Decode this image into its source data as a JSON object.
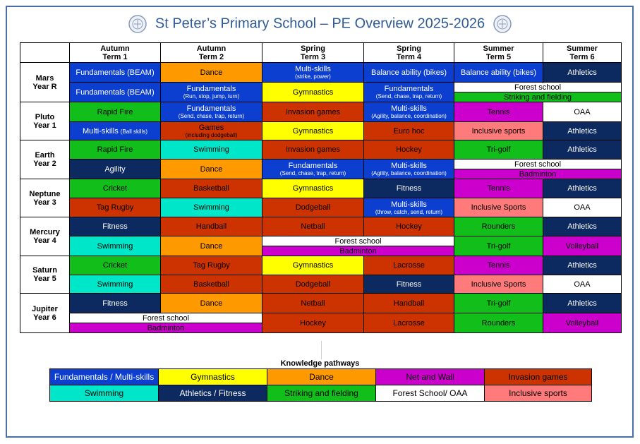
{
  "title": "St Peter’s Primary School – PE Overview 2025-2026",
  "headers": [
    {
      "l1": "Autumn",
      "l2": "Term 1"
    },
    {
      "l1": "Autumn",
      "l2": "Term 2"
    },
    {
      "l1": "Spring",
      "l2": "Term 3"
    },
    {
      "l1": "Spring",
      "l2": "Term 4"
    },
    {
      "l1": "Summer",
      "l2": "Term 5"
    },
    {
      "l1": "Summer",
      "l2": "Term 6"
    }
  ],
  "years": [
    {
      "name": "Mars",
      "year": "Year R"
    },
    {
      "name": "Pluto",
      "year": "Year 1"
    },
    {
      "name": "Earth",
      "year": "Year 2"
    },
    {
      "name": "Neptune",
      "year": "Year 3"
    },
    {
      "name": "Mercury",
      "year": "Year 4"
    },
    {
      "name": "Saturn",
      "year": "Year 5"
    },
    {
      "name": "Jupiter",
      "year": "Year 6"
    }
  ],
  "cells": {
    "mars_r1": [
      "Fundamentals (BEAM)",
      "Dance",
      "Multi-skills",
      "(strike, power)",
      "Balance ability (bikes)",
      "Balance ability (bikes)",
      "Athletics"
    ],
    "mars_r2": [
      "Fundamentals (BEAM)",
      "Fundamentals",
      "(Run, stop, jump, turn)",
      "Gymnastics",
      "Fundamentals",
      "(Send, chase, trap, return)",
      "Forest school",
      "Striking and fielding"
    ],
    "pluto_r1": [
      "Rapid Fire",
      "Fundamentals",
      "(Send, chase, trap, return)",
      "Invasion games",
      "Multi-skills",
      "(Agility, balance, coordination)",
      "Tennis",
      "OAA"
    ],
    "pluto_r2": [
      "Multi-skills",
      "(Ball skills)",
      "Games",
      "(including dodgeball)",
      "Gymnastics",
      "Euro hoc",
      "Inclusive sports",
      "Athletics"
    ],
    "earth_r1": [
      "Rapid Fire",
      "Swimming",
      "Invasion games",
      "Hockey",
      "Tri-golf",
      "Athletics"
    ],
    "earth_r2": [
      "Agility",
      "Dance",
      "Fundamentals",
      "(Send, chase, trap, return)",
      "Multi-skills",
      "(Agility, balance, coordination)",
      "Forest school",
      "Badminton"
    ],
    "neptune_r1": [
      "Cricket",
      "Basketball",
      "Gymnastics",
      "Fitness",
      "Tennis",
      "Athletics"
    ],
    "neptune_r2": [
      "Tag Rugby",
      "Swimming",
      "Dodgeball",
      "Multi-skills",
      "(throw, catch, send, return)",
      "Inclusive Sports",
      "OAA"
    ],
    "mercury_r1": [
      "Fitness",
      "Handball",
      "Netball",
      "Hockey",
      "Rounders",
      "Athletics"
    ],
    "mercury_r2": [
      "Swimming",
      "Dance",
      "Forest school",
      "Badminton",
      "Tri-golf",
      "Volleyball"
    ],
    "saturn_r1": [
      "Cricket",
      "Tag Rugby",
      "Gymnastics",
      "Lacrosse",
      "Tennis",
      "Athletics"
    ],
    "saturn_r2": [
      "Swimming",
      "Basketball",
      "Dodgeball",
      "Fitness",
      "Inclusive Sports",
      "OAA"
    ],
    "jupiter_r1": [
      "Fitness",
      "Dance",
      "Netball",
      "Handball",
      "Tri-golf",
      "Athletics"
    ],
    "jupiter_r2": [
      "Forest school",
      "Badminton",
      "Hockey",
      "Lacrosse",
      "Rounders",
      "Volleyball"
    ]
  },
  "legend": {
    "title": "Knowledge pathways",
    "items": [
      {
        "label": "Fundamentals / Multi-skills",
        "color": "#0c3fd0"
      },
      {
        "label": "Gymnastics",
        "color": "#ffff00"
      },
      {
        "label": "Dance",
        "color": "#ff9900"
      },
      {
        "label": "Net and Wall",
        "color": "#cc00cc"
      },
      {
        "label": "Invasion games",
        "color": "#cc3300"
      },
      {
        "label": "Swimming",
        "color": "#00e6c8"
      },
      {
        "label": "Athletics / Fitness",
        "color": "#0c2a60"
      },
      {
        "label": "Striking and fielding",
        "color": "#12bf1a"
      },
      {
        "label": "Forest School/ OAA",
        "color": "#ffffff"
      },
      {
        "label": "Inclusive sports",
        "color": "#ff7b7b"
      }
    ]
  }
}
